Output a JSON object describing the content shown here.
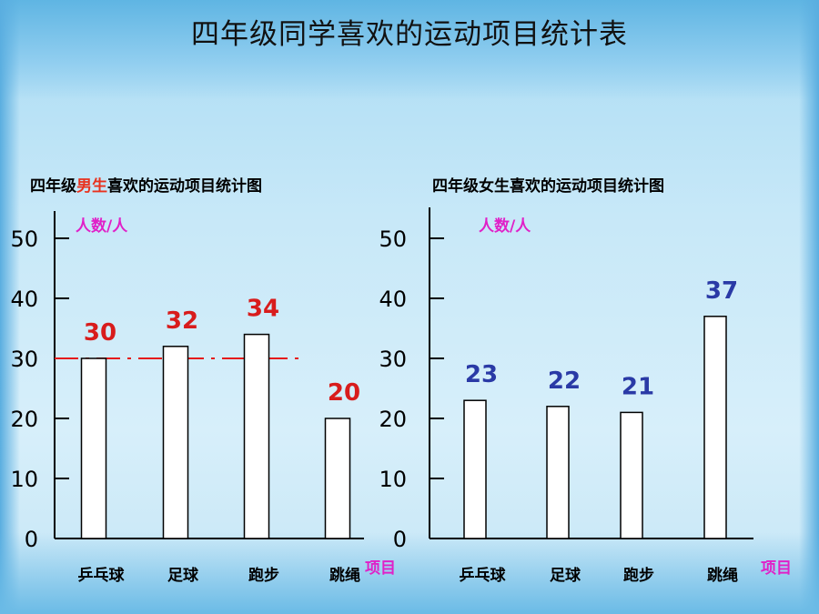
{
  "slide": {
    "title": "四年级同学喜欢的运动项目统计表"
  },
  "chart_data": [
    {
      "type": "bar",
      "title_parts": [
        "四年级",
        "男生",
        "喜欢的运动项目统计图"
      ],
      "ylabel": "人数/人",
      "xlabel": "项目",
      "categories": [
        "乒乓球",
        "足球",
        "跑步",
        "跳绳"
      ],
      "values": [
        30,
        32,
        34,
        20
      ],
      "value_labels": [
        "30",
        "32",
        "34",
        "20"
      ],
      "yticks": [
        "0",
        "10",
        "20",
        "30",
        "40",
        "50"
      ],
      "ylim": [
        0,
        50
      ],
      "reference_line": 30,
      "value_color": "#d81c1c",
      "highlight_color": "#e8321e"
    },
    {
      "type": "bar",
      "title": "四年级女生喜欢的运动项目统计图",
      "ylabel": "人数/人",
      "xlabel": "项目",
      "categories": [
        "乒乓球",
        "足球",
        "跑步",
        "跳绳"
      ],
      "values": [
        23,
        22,
        21,
        37
      ],
      "value_labels": [
        "23",
        "22",
        "21",
        "37"
      ],
      "yticks": [
        "0",
        "10",
        "20",
        "30",
        "40",
        "50"
      ],
      "ylim": [
        0,
        50
      ],
      "value_color": "#2a3aa6"
    }
  ]
}
